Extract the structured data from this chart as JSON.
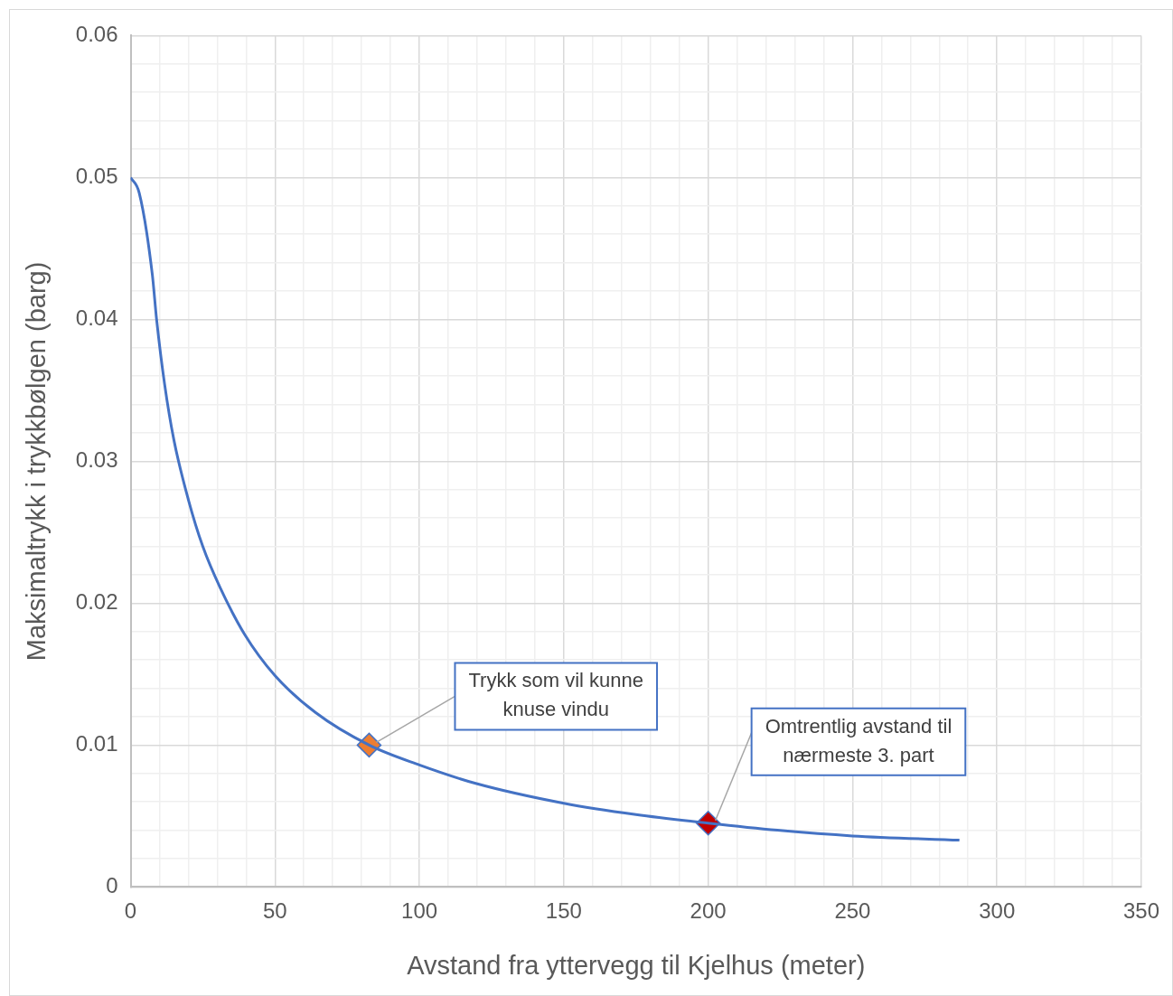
{
  "chart_data": {
    "type": "line",
    "xlabel": "Avstand fra yttervegg til Kjelhus (meter)",
    "ylabel": "Maksimaltrykk i trykkbølgen (barg)",
    "xlim": [
      0,
      350
    ],
    "xticks": [
      0,
      {
        "value": 10,
        "label": null
      },
      {
        "value": 20,
        "label": null
      },
      {
        "value": 30,
        "label": null
      },
      {
        "value": 40,
        "label": null
      },
      50,
      {
        "value": 60,
        "label": null
      },
      {
        "value": 70,
        "label": null
      },
      {
        "value": 80,
        "label": null
      },
      {
        "value": 90,
        "label": null
      },
      100,
      {
        "value": 110,
        "label": null
      },
      {
        "value": 120,
        "label": null
      },
      {
        "value": 130,
        "label": null
      },
      {
        "value": 140,
        "label": null
      },
      150,
      {
        "value": 160,
        "label": null
      },
      {
        "value": 170,
        "label": null
      },
      {
        "value": 180,
        "label": null
      },
      {
        "value": 190,
        "label": null
      },
      200,
      {
        "value": 210,
        "label": null
      },
      {
        "value": 220,
        "label": null
      },
      {
        "value": 230,
        "label": null
      },
      {
        "value": 240,
        "label": null
      },
      250,
      {
        "value": 260,
        "label": null
      },
      {
        "value": 270,
        "label": null
      },
      {
        "value": 280,
        "label": null
      },
      {
        "value": 290,
        "label": null
      },
      300,
      {
        "value": 310,
        "label": null
      },
      {
        "value": 320,
        "label": null
      },
      {
        "value": 330,
        "label": null
      },
      {
        "value": 340,
        "label": null
      },
      350
    ],
    "ylim": [
      0,
      0.06
    ],
    "yticks": [
      0,
      {
        "value": 0.002,
        "label": null
      },
      {
        "value": 0.004,
        "label": null
      },
      {
        "value": 0.006,
        "label": null
      },
      {
        "value": 0.008,
        "label": null
      },
      0.01,
      {
        "value": 0.012,
        "label": null
      },
      {
        "value": 0.014,
        "label": null
      },
      {
        "value": 0.016,
        "label": null
      },
      {
        "value": 0.018,
        "label": null
      },
      0.02,
      {
        "value": 0.022,
        "label": null
      },
      {
        "value": 0.024,
        "label": null
      },
      {
        "value": 0.026,
        "label": null
      },
      {
        "value": 0.028,
        "label": null
      },
      0.03,
      {
        "value": 0.032,
        "label": null
      },
      {
        "value": 0.034,
        "label": null
      },
      {
        "value": 0.036,
        "label": null
      },
      {
        "value": 0.038,
        "label": null
      },
      0.04,
      {
        "value": 0.042,
        "label": null
      },
      {
        "value": 0.044,
        "label": null
      },
      {
        "value": 0.046,
        "label": null
      },
      {
        "value": 0.048,
        "label": null
      },
      0.05,
      {
        "value": 0.052,
        "label": null
      },
      {
        "value": 0.054,
        "label": null
      },
      {
        "value": 0.056,
        "label": null
      },
      {
        "value": 0.058,
        "label": null
      },
      0.06
    ],
    "grid": true,
    "legend": false,
    "series": [
      {
        "color": "#4472c4",
        "marker": "none",
        "x": [
          0,
          3,
          7.5,
          9,
          11.8,
          15,
          20,
          25,
          31,
          39.5,
          50,
          64,
          82.6,
          100,
          119.5,
          150,
          175,
          200,
          224,
          250,
          287
        ],
        "values": [
          0.05,
          0.0489,
          0.0432,
          0.04,
          0.0354,
          0.0315,
          0.0273,
          0.024,
          0.0211,
          0.0178,
          0.0149,
          0.0123,
          0.01,
          0.0086,
          0.0073,
          0.0059,
          0.0051,
          0.0045,
          0.004,
          0.0036,
          0.0033
        ]
      },
      {
        "type": "scatter",
        "marker": "diamond",
        "colors": [
          "#ed7d31",
          "#c00000"
        ],
        "x": [
          82.6,
          200
        ],
        "values": [
          0.01,
          0.0045
        ]
      }
    ],
    "annotations": [
      {
        "text": "Trykk som vil kunne knuse vindu",
        "x": 82.6,
        "y": 0.01
      },
      {
        "text": "Omtrentlig avstand til nærmeste 3. part",
        "x": 200,
        "y": 0.0045
      }
    ]
  }
}
